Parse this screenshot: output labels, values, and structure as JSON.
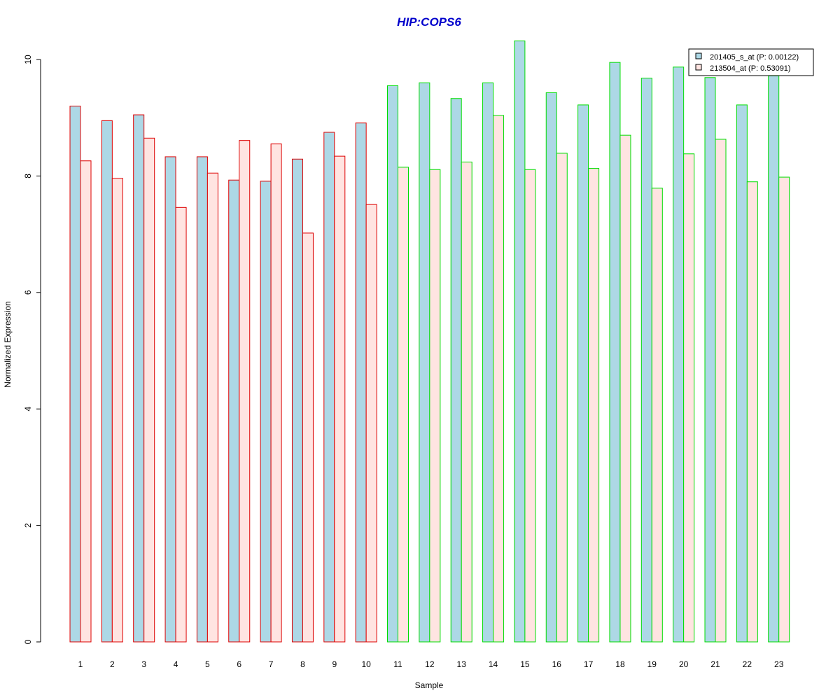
{
  "chart_data": {
    "type": "bar",
    "title": "HIP:COPS6",
    "title_color": "#0000cc",
    "xlabel": "Sample",
    "ylabel": "Normalized Expression",
    "ylim": [
      0,
      10.3
    ],
    "yticks": [
      0,
      2,
      4,
      6,
      8,
      10
    ],
    "categories": [
      "1",
      "2",
      "3",
      "4",
      "5",
      "6",
      "7",
      "8",
      "9",
      "10",
      "11",
      "12",
      "13",
      "14",
      "15",
      "16",
      "17",
      "18",
      "19",
      "20",
      "21",
      "22",
      "23"
    ],
    "series": [
      {
        "name": "201405_s_at (P: 0.00122)",
        "fill": "#add8e6",
        "values": [
          9.2,
          8.95,
          9.05,
          8.33,
          8.33,
          7.93,
          7.91,
          8.29,
          8.75,
          8.91,
          9.55,
          9.6,
          9.33,
          9.6,
          10.32,
          9.43,
          9.22,
          9.95,
          9.68,
          9.87,
          9.69,
          9.22,
          9.72
        ]
      },
      {
        "name": "213504_at (P: 0.53091)",
        "fill": "#ffe4e1",
        "values": [
          8.26,
          7.96,
          8.65,
          7.46,
          8.05,
          8.61,
          8.55,
          7.02,
          8.34,
          7.51,
          8.15,
          8.11,
          8.24,
          9.04,
          8.11,
          8.39,
          8.13,
          8.7,
          7.79,
          8.38,
          8.63,
          7.9,
          7.98
        ]
      }
    ],
    "group_border_colors": [
      "#dd0000",
      "#dd0000",
      "#dd0000",
      "#dd0000",
      "#dd0000",
      "#dd0000",
      "#dd0000",
      "#dd0000",
      "#dd0000",
      "#dd0000",
      "#00dd00",
      "#00dd00",
      "#00dd00",
      "#00dd00",
      "#00dd00",
      "#00dd00",
      "#00dd00",
      "#00dd00",
      "#00dd00",
      "#00dd00",
      "#00dd00",
      "#00dd00",
      "#00dd00"
    ],
    "legend_position": "top-right",
    "grid": false
  }
}
